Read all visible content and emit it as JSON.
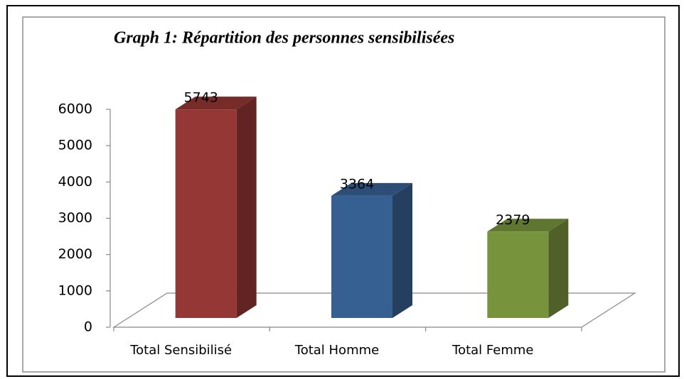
{
  "chart_data": {
    "type": "bar3d",
    "title": "Graph 1: Répartition des personnes sensibilisées",
    "categories": [
      "Total Sensibilisé",
      "Total Homme",
      "Total Femme"
    ],
    "values": [
      5743,
      3364,
      2379
    ],
    "colors": [
      "#953735",
      "#376092",
      "#77933c"
    ],
    "ylim": [
      0,
      6000
    ],
    "yticks": [
      0,
      1000,
      2000,
      3000,
      4000,
      5000,
      6000
    ],
    "grid": false
  }
}
